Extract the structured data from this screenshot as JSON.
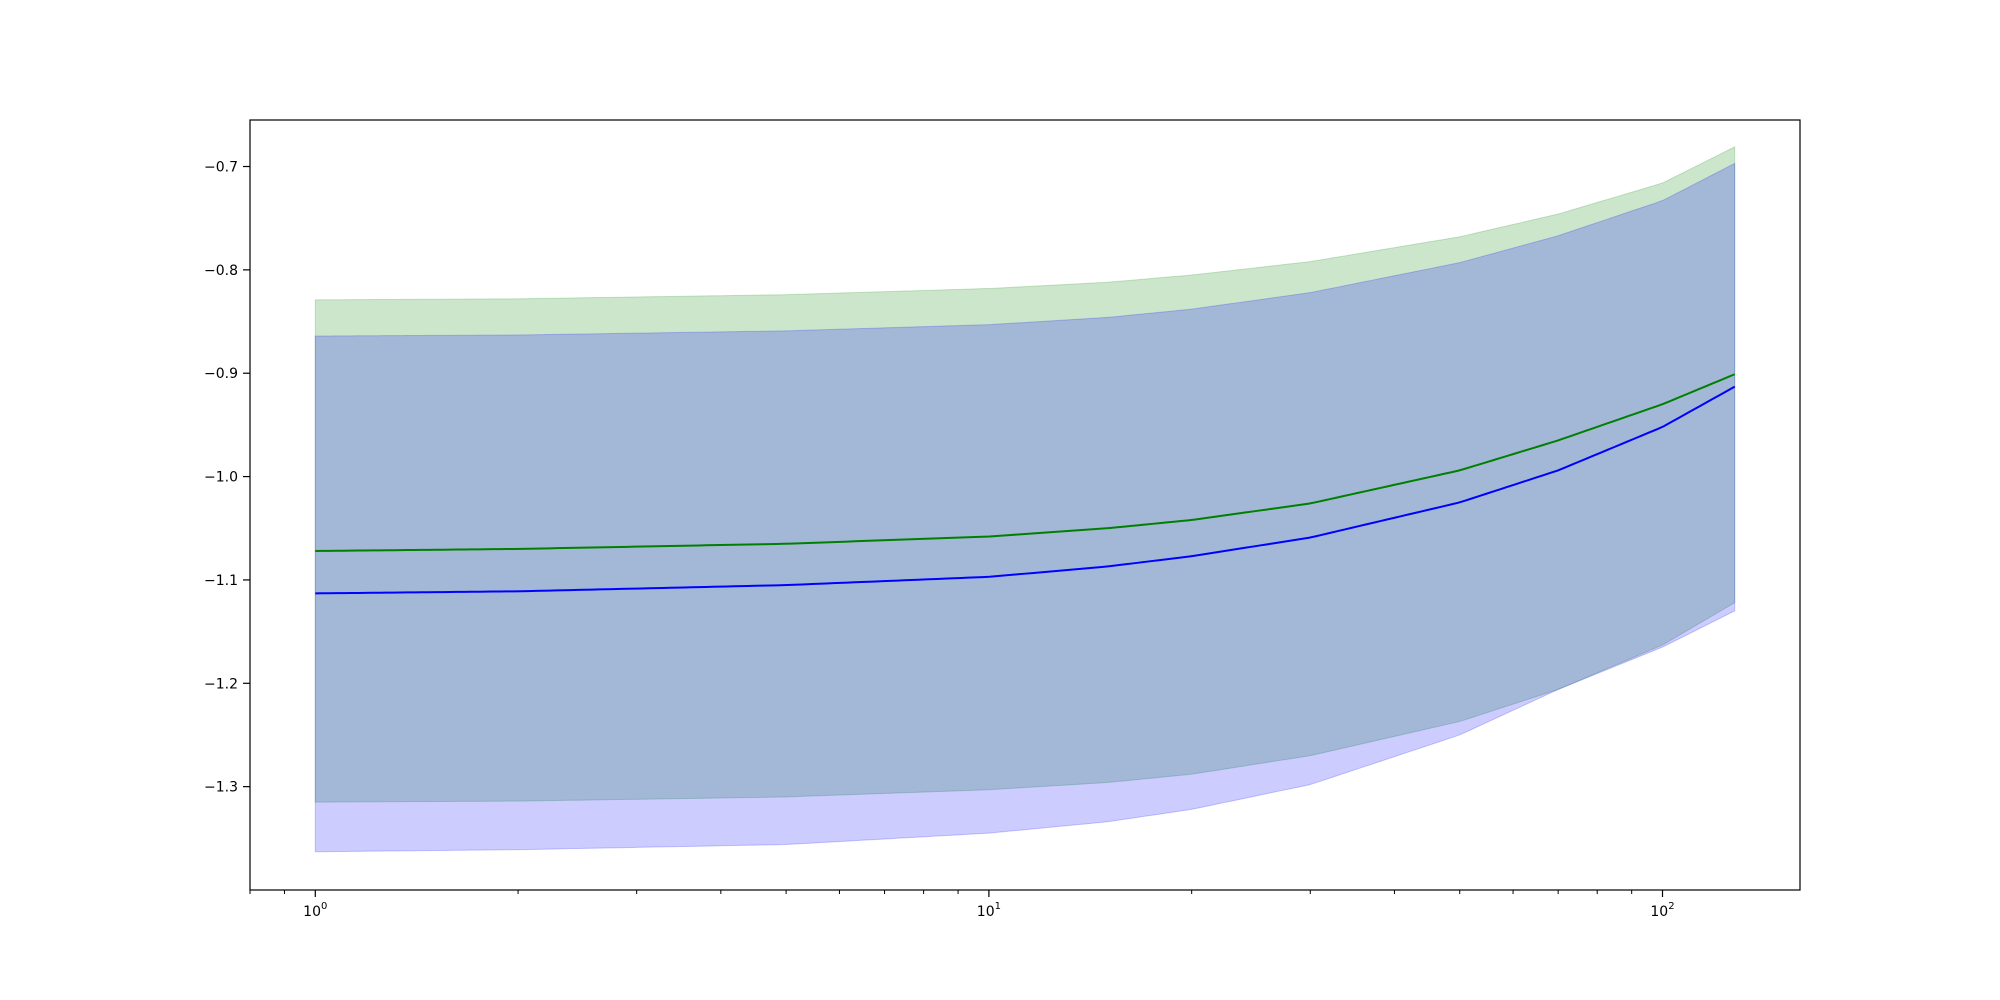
{
  "chart_data": {
    "type": "line",
    "title": "",
    "xlabel": "",
    "ylabel": "",
    "x_scale": "log",
    "xlim": [
      0.8,
      160
    ],
    "ylim": [
      -1.4,
      -0.655
    ],
    "grid": false,
    "legend": "none",
    "x_ticks": [
      {
        "value": 1,
        "base": "10",
        "exp": "0"
      },
      {
        "value": 10,
        "base": "10",
        "exp": "1"
      },
      {
        "value": 100,
        "base": "10",
        "exp": "2"
      }
    ],
    "y_ticks": [
      {
        "value": -0.7,
        "label": "−0.7"
      },
      {
        "value": -0.8,
        "label": "−0.8"
      },
      {
        "value": -0.9,
        "label": "−0.9"
      },
      {
        "value": -1.0,
        "label": "−1.0"
      },
      {
        "value": -1.1,
        "label": "−1.1"
      },
      {
        "value": -1.2,
        "label": "−1.2"
      },
      {
        "value": -1.3,
        "label": "−1.3"
      }
    ],
    "x": [
      1,
      2,
      5,
      10,
      15,
      20,
      30,
      50,
      70,
      100,
      128
    ],
    "series": [
      {
        "color": "#008000",
        "band_color": "#008000",
        "mean": [
          -1.072,
          -1.07,
          -1.065,
          -1.058,
          -1.05,
          -1.042,
          -1.026,
          -0.994,
          -0.965,
          -0.93,
          -0.901
        ],
        "upper": [
          -0.829,
          -0.828,
          -0.824,
          -0.818,
          -0.812,
          -0.805,
          -0.792,
          -0.768,
          -0.746,
          -0.716,
          -0.681
        ],
        "lower": [
          -1.315,
          -1.314,
          -1.31,
          -1.303,
          -1.296,
          -1.288,
          -1.27,
          -1.237,
          -1.206,
          -1.163,
          -1.122
        ]
      },
      {
        "color": "#0000ff",
        "band_color": "#0000ff",
        "mean": [
          -1.113,
          -1.111,
          -1.105,
          -1.097,
          -1.087,
          -1.077,
          -1.059,
          -1.025,
          -0.994,
          -0.952,
          -0.913
        ],
        "upper": [
          -0.864,
          -0.863,
          -0.859,
          -0.853,
          -0.846,
          -0.838,
          -0.822,
          -0.793,
          -0.767,
          -0.733,
          -0.697
        ],
        "lower": [
          -1.363,
          -1.361,
          -1.356,
          -1.345,
          -1.334,
          -1.322,
          -1.298,
          -1.25,
          -1.206,
          -1.165,
          -1.13
        ]
      }
    ]
  }
}
